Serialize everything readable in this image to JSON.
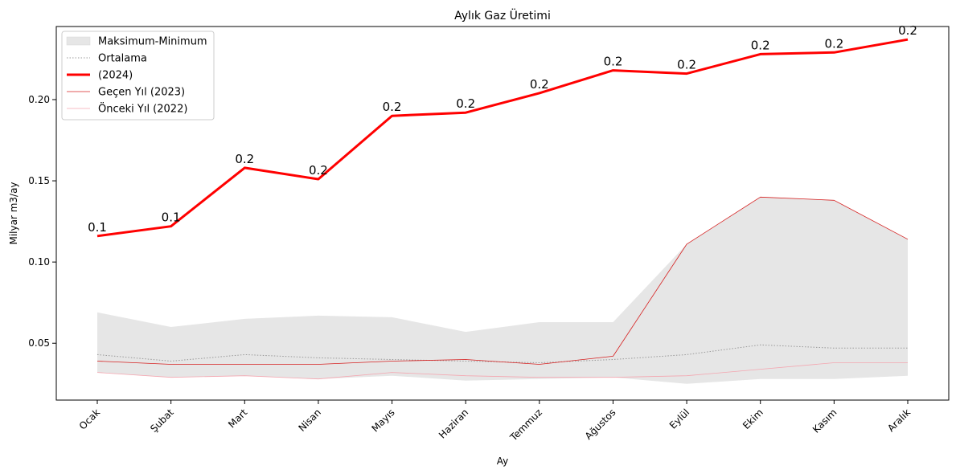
{
  "chart_data": {
    "type": "line",
    "title": "Aylık Gaz Üretimi",
    "xlabel": "Ay",
    "ylabel": "Milyar m3/ay",
    "categories": [
      "Ocak",
      "Şubat",
      "Mart",
      "Nisan",
      "Mayıs",
      "Haziran",
      "Temmuz",
      "Ağustos",
      "Eylül",
      "Ekim",
      "Kasım",
      "Aralık"
    ],
    "ylim": [
      0.015,
      0.245
    ],
    "yticks": [
      0.05,
      0.1,
      0.15,
      0.2
    ],
    "ytick_labels": [
      "0.05",
      "0.10",
      "0.15",
      "0.20"
    ],
    "band": {
      "name": "Maksimum-Minimum",
      "color": "#e6e6e6",
      "max": [
        0.069,
        0.06,
        0.065,
        0.067,
        0.066,
        0.057,
        0.063,
        0.063,
        0.111,
        0.14,
        0.138,
        0.114
      ],
      "min": [
        0.032,
        0.029,
        0.03,
        0.028,
        0.03,
        0.027,
        0.028,
        0.029,
        0.025,
        0.028,
        0.028,
        0.03
      ]
    },
    "series": [
      {
        "name": "Ortalama",
        "style": "dotted",
        "color": "#999999",
        "values": [
          0.043,
          0.039,
          0.043,
          0.041,
          0.04,
          0.039,
          0.038,
          0.04,
          0.043,
          0.049,
          0.047,
          0.047
        ]
      },
      {
        "name": " (2024)",
        "style": "solid-thick",
        "color": "#ff0000",
        "values": [
          0.116,
          0.122,
          0.158,
          0.151,
          0.19,
          0.192,
          0.204,
          0.218,
          0.216,
          0.228,
          0.229,
          0.237
        ],
        "data_labels": [
          "0.1",
          "0.1",
          "0.2",
          "0.2",
          "0.2",
          "0.2",
          "0.2",
          "0.2",
          "0.2",
          "0.2",
          "0.2",
          "0.2"
        ]
      },
      {
        "name": "Geçen Yıl (2023)",
        "style": "solid-thin",
        "color": "#d62020",
        "values": [
          0.039,
          0.037,
          0.037,
          0.037,
          0.039,
          0.04,
          0.037,
          0.042,
          0.111,
          0.14,
          0.138,
          0.114
        ]
      },
      {
        "name": "Önceki Yıl (2022)",
        "style": "solid-faint",
        "color": "#f4a6b0",
        "values": [
          0.032,
          0.029,
          0.03,
          0.028,
          0.032,
          0.03,
          0.029,
          0.029,
          0.03,
          0.034,
          0.038,
          0.038
        ]
      }
    ],
    "legend_position": "top-left",
    "grid": false
  }
}
